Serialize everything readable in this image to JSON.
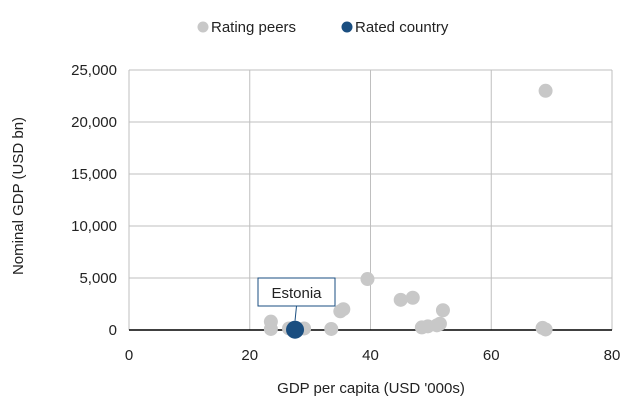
{
  "chart_data": {
    "type": "scatter",
    "title": "",
    "xlabel": "GDP per capita (USD '000s)",
    "ylabel": "Nominal GDP (USD bn)",
    "xlim": [
      0,
      80
    ],
    "ylim": [
      0,
      25000
    ],
    "x_ticks": [
      0,
      20,
      40,
      60,
      80
    ],
    "y_ticks": [
      0,
      5000,
      10000,
      15000,
      20000,
      25000
    ],
    "x_tick_labels": [
      "0",
      "20",
      "40",
      "60",
      "80"
    ],
    "y_tick_labels": [
      "0",
      "5,000",
      "10,000",
      "15,000",
      "20,000",
      "25,000"
    ],
    "grid": "vertical-and-horizontal",
    "legend": {
      "placement": "top-center"
    },
    "series": [
      {
        "name": "Rating peers",
        "color": "#c8c8c8",
        "points": [
          {
            "x": 23.5,
            "y": 800
          },
          {
            "x": 23.5,
            "y": 100
          },
          {
            "x": 26.5,
            "y": 150
          },
          {
            "x": 29.0,
            "y": 150
          },
          {
            "x": 33.5,
            "y": 100
          },
          {
            "x": 35.0,
            "y": 1800
          },
          {
            "x": 35.5,
            "y": 2000
          },
          {
            "x": 39.5,
            "y": 4900
          },
          {
            "x": 45.0,
            "y": 2900
          },
          {
            "x": 47.0,
            "y": 3100
          },
          {
            "x": 48.5,
            "y": 250
          },
          {
            "x": 49.5,
            "y": 350
          },
          {
            "x": 51.0,
            "y": 450
          },
          {
            "x": 51.5,
            "y": 600
          },
          {
            "x": 52.0,
            "y": 1900
          },
          {
            "x": 68.5,
            "y": 200
          },
          {
            "x": 69.0,
            "y": 23000
          },
          {
            "x": 69.0,
            "y": 50
          }
        ]
      },
      {
        "name": "Rated country",
        "color": "#1a4e80",
        "points": [
          {
            "x": 27.5,
            "y": 30
          }
        ]
      }
    ],
    "annotations": [
      {
        "text": "Estonia",
        "x": 27.5,
        "y": 30
      }
    ]
  }
}
